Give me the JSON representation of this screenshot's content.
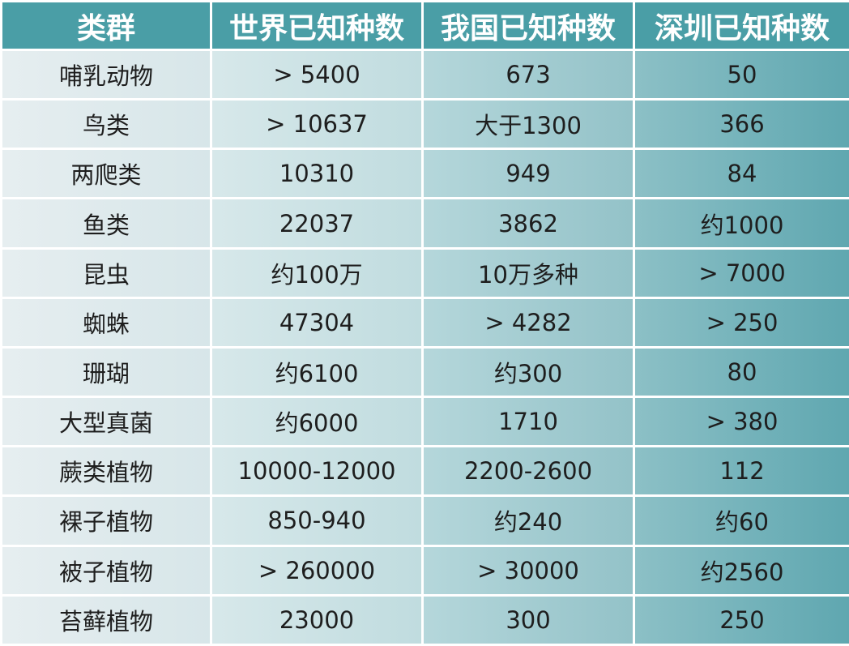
{
  "headers": [
    "类群",
    "世界已知种数",
    "我国已知种数",
    "深圳已知种数"
  ],
  "rows": [
    [
      "哺乳动物",
      "> 5400",
      "673",
      "50"
    ],
    [
      "鸟类",
      "> 10637",
      "大于1300",
      "366"
    ],
    [
      "两爬类",
      "10310",
      "949",
      "84"
    ],
    [
      "鱼类",
      "22037",
      "3862",
      "约1000"
    ],
    [
      "昆虫",
      "约100万",
      "10万多种",
      "> 7000"
    ],
    [
      "蜘蛛",
      "47304",
      "> 4282",
      "> 250"
    ],
    [
      "珊瑚",
      "约6100",
      "约300",
      "80"
    ],
    [
      "大型真菌",
      "约6000",
      "1710",
      "> 380"
    ],
    [
      "蕨类植物",
      "10000-12000",
      "2200-2600",
      "112"
    ],
    [
      "裸子植物",
      "850-940",
      "约240",
      "约60"
    ],
    [
      "被子植物",
      "> 260000",
      "> 30000",
      "约2560"
    ],
    [
      "苔藓植物",
      "23000",
      "300",
      "250"
    ]
  ],
  "colors": {
    "header_bg": "#4a9ea6",
    "header_text": "#ffffff",
    "cell_text": "#1e1e1e"
  }
}
